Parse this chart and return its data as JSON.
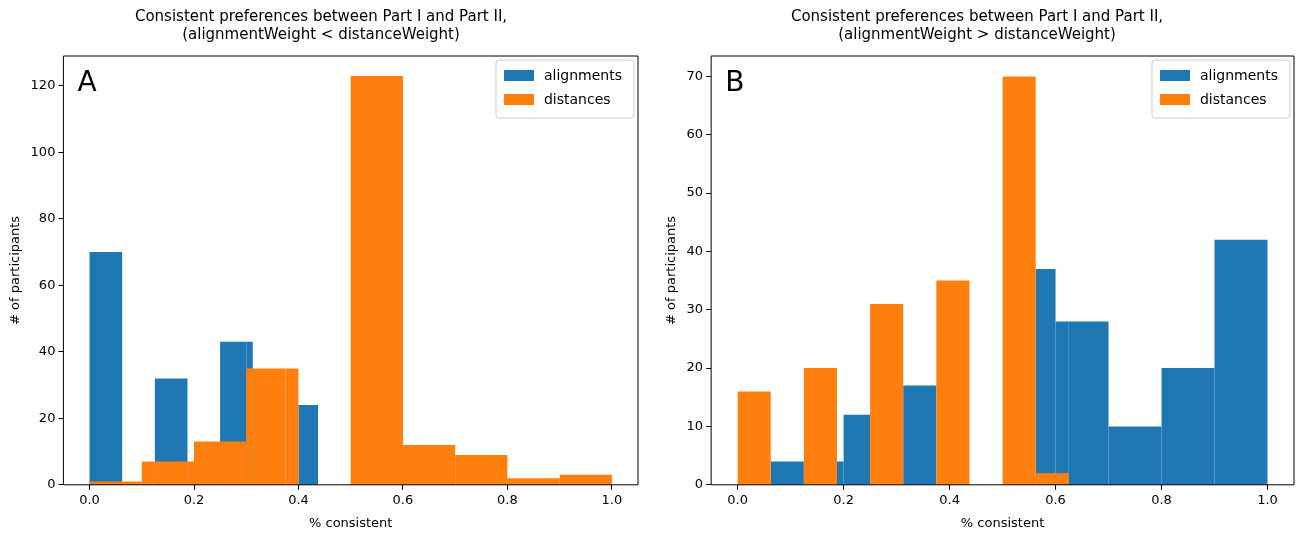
{
  "chart_data": [
    {
      "type": "histogram",
      "title": "Consistent preferences between Part I and Part II,\n(alignmentWeight < distanceWeight)",
      "xlabel": "% consistent",
      "ylabel": "# of participants",
      "annotations": [
        "A"
      ],
      "legend": "top right",
      "xlim": [
        -0.05,
        1.05
      ],
      "ylim": [
        0,
        129
      ],
      "xticks": [
        {
          "value": 0,
          "label": "0.0"
        },
        {
          "value": 0.2,
          "label": "0.2"
        },
        {
          "value": 0.4,
          "label": "0.4"
        },
        {
          "value": 0.6,
          "label": "0.6"
        },
        {
          "value": 0.8,
          "label": "0.8"
        },
        {
          "value": 1,
          "label": "1.0"
        }
      ],
      "yticks": [
        0,
        20,
        40,
        60,
        80,
        100,
        120
      ],
      "bins": [
        0,
        0.0625,
        0.1,
        0.125,
        0.1875,
        0.2,
        0.25,
        0.3,
        0.3125,
        0.375,
        0.4,
        0.4375,
        0.5,
        0.6,
        0.7,
        0.8,
        0.9,
        1.0
      ],
      "series": [
        {
          "name": "alignments",
          "color": "#1f77b4",
          "values": [
            70,
            0,
            0,
            32,
            0,
            0,
            43,
            43,
            null,
            null,
            24,
            0,
            null,
            0,
            0,
            0,
            0
          ]
        },
        {
          "name": "distances",
          "color": "#ff7f0e",
          "values": [
            1,
            1,
            7,
            7,
            7,
            13,
            13,
            35,
            35,
            35,
            0,
            0,
            123,
            12,
            9,
            2,
            3
          ]
        }
      ]
    },
    {
      "type": "histogram",
      "title": "Consistent preferences between Part I and Part II,\n(alignmentWeight > distanceWeight)",
      "xlabel": "% consistent",
      "ylabel": "# of participants",
      "annotations": [
        "B"
      ],
      "legend": "top right",
      "xlim": [
        -0.05,
        1.05
      ],
      "ylim": [
        0,
        73.5
      ],
      "xticks": [
        {
          "value": 0,
          "label": "0.0"
        },
        {
          "value": 0.2,
          "label": "0.2"
        },
        {
          "value": 0.4,
          "label": "0.4"
        },
        {
          "value": 0.6,
          "label": "0.6"
        },
        {
          "value": 0.8,
          "label": "0.8"
        },
        {
          "value": 1,
          "label": "1.0"
        }
      ],
      "yticks": [
        0,
        10,
        20,
        30,
        40,
        50,
        60,
        70
      ],
      "bins": [
        0,
        0.0625,
        0.125,
        0.1875,
        0.2,
        0.25,
        0.3125,
        0.375,
        0.4375,
        0.5,
        0.5625,
        0.6,
        0.625,
        0.7,
        0.8,
        0.9,
        1.0
      ],
      "series": [
        {
          "name": "alignments",
          "color": "#1f77b4",
          "values": [
            null,
            4,
            null,
            4,
            12,
            null,
            17,
            null,
            0,
            null,
            37,
            28,
            28,
            10,
            20,
            42
          ]
        },
        {
          "name": "distances",
          "color": "#ff7f0e",
          "values": [
            16,
            0,
            20,
            0,
            0,
            31,
            0,
            35,
            0,
            70,
            2,
            2,
            0,
            0,
            0,
            0
          ]
        }
      ]
    }
  ]
}
